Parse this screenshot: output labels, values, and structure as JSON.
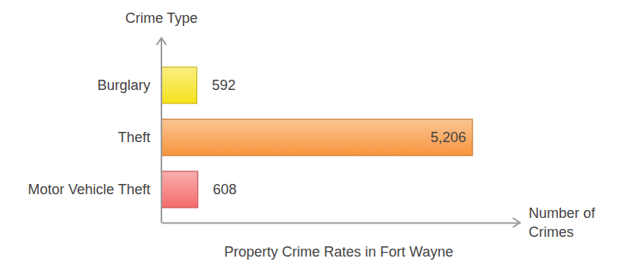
{
  "chart_data": {
    "type": "bar",
    "orientation": "horizontal",
    "title": "Property Crime Rates in Fort Wayne",
    "x_label": "Number of Crimes",
    "y_label": "Crime Type",
    "categories": [
      "Burglary",
      "Theft",
      "Motor Vehicle Theft"
    ],
    "values": [
      592,
      5206,
      608
    ],
    "value_labels": [
      "592",
      "5,206",
      "608"
    ],
    "colors": [
      "#f5e21c",
      "#f7953d",
      "#f46b6b"
    ],
    "xlim": [
      0,
      6000
    ],
    "xticks": [],
    "data_labels": true,
    "tick_labels": "y",
    "grid": false
  }
}
